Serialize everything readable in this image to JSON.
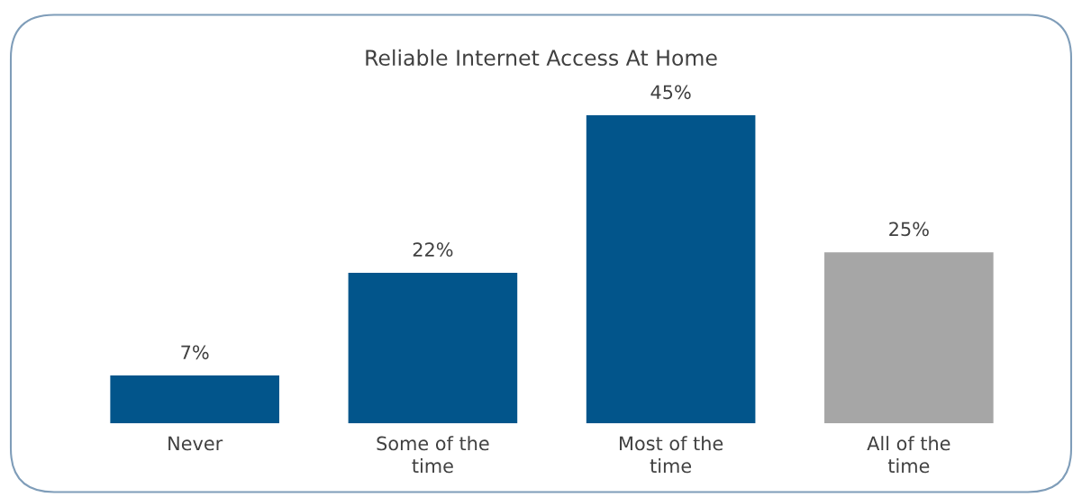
{
  "chart_data": {
    "type": "bar",
    "title": "Reliable Internet Access At Home",
    "categories": [
      "Never",
      "Some of the\ntime",
      "Most of the\ntime",
      "All of the\ntime"
    ],
    "values": [
      7,
      22,
      45,
      25
    ],
    "colors": [
      "#02558b",
      "#02558b",
      "#02558b",
      "#a6a6a6"
    ],
    "value_labels": [
      "7%",
      "22%",
      "45%",
      "25%"
    ],
    "grid": false,
    "legend": false
  }
}
